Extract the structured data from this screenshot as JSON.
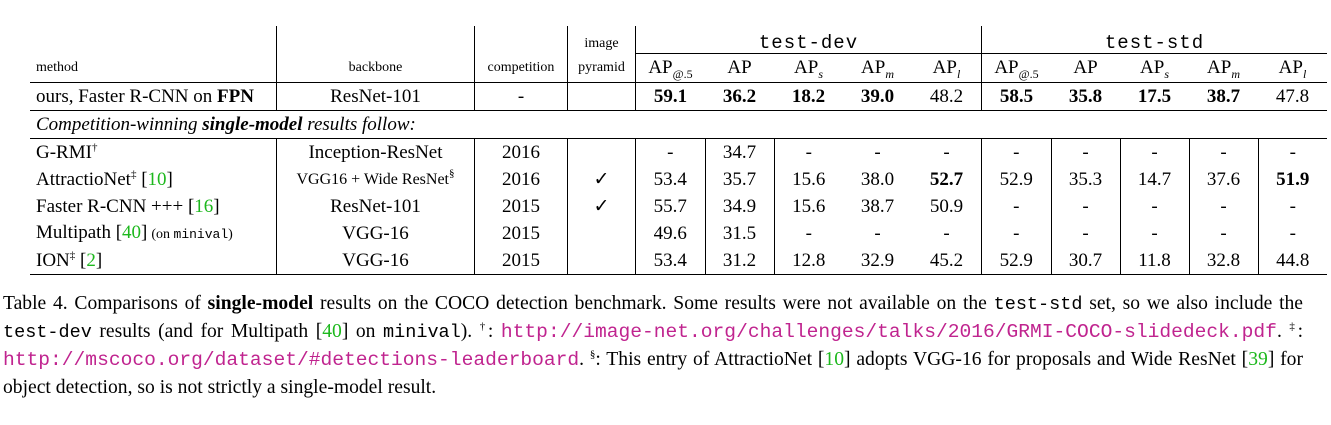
{
  "table": {
    "headers": {
      "method": "method",
      "backbone": "backbone",
      "competition": "competition",
      "image": "image",
      "pyramid": "pyramid",
      "test_dev": "test-dev",
      "test_std": "test-std",
      "ap_cols": [
        {
          "base": "AP",
          "sub": "@.5"
        },
        {
          "base": "AP",
          "sub": ""
        },
        {
          "base": "AP",
          "sub": "s"
        },
        {
          "base": "AP",
          "sub": "m"
        },
        {
          "base": "AP",
          "sub": "l"
        }
      ]
    },
    "ours_row": {
      "method_prefix": "ours, Faster R-CNN on ",
      "method_bold": "FPN",
      "backbone": "ResNet-101",
      "competition": "-",
      "pyramid": "",
      "dev": [
        "59.1",
        "36.2",
        "18.2",
        "39.0",
        "48.2"
      ],
      "std": [
        "58.5",
        "35.8",
        "17.5",
        "38.7",
        "47.8"
      ],
      "dev_bold": [
        true,
        true,
        true,
        true,
        false
      ],
      "std_bold": [
        true,
        true,
        true,
        true,
        false
      ]
    },
    "section_label": {
      "prefix": "Competition-winning ",
      "bold": "single-model",
      "suffix": " results follow:"
    },
    "rows": [
      {
        "name": "G-RMI",
        "mark": "†",
        "cite": "",
        "note": "",
        "note_mono": "",
        "note_end": "",
        "backbone": "Inception-ResNet",
        "backbone_mark": "",
        "competition": "2016",
        "pyramid": "",
        "dev": [
          "-",
          "34.7",
          "-",
          "-",
          "-"
        ],
        "std": [
          "-",
          "-",
          "-",
          "-",
          "-"
        ],
        "dev_bold_l": false,
        "std_bold_l": false
      },
      {
        "name": "AttractioNet",
        "mark": "‡",
        "cite": "10",
        "note": "",
        "note_mono": "",
        "note_end": "",
        "backbone": "VGG16 + Wide ResNet",
        "backbone_mark": "§",
        "competition": "2016",
        "pyramid": "✓",
        "dev": [
          "53.4",
          "35.7",
          "15.6",
          "38.0",
          "52.7"
        ],
        "std": [
          "52.9",
          "35.3",
          "14.7",
          "37.6",
          "51.9"
        ],
        "dev_bold_l": true,
        "std_bold_l": true
      },
      {
        "name": "Faster R-CNN +++",
        "mark": "",
        "cite": "16",
        "note": "",
        "note_mono": "",
        "note_end": "",
        "backbone": "ResNet-101",
        "backbone_mark": "",
        "competition": "2015",
        "pyramid": "✓",
        "dev": [
          "55.7",
          "34.9",
          "15.6",
          "38.7",
          "50.9"
        ],
        "std": [
          "-",
          "-",
          "-",
          "-",
          "-"
        ],
        "dev_bold_l": false,
        "std_bold_l": false
      },
      {
        "name": "Multipath",
        "mark": "",
        "cite": "40",
        "note": "(on ",
        "note_mono": "minival",
        "note_end": ")",
        "backbone": "VGG-16",
        "backbone_mark": "",
        "competition": "2015",
        "pyramid": "",
        "dev": [
          "49.6",
          "31.5",
          "-",
          "-",
          "-"
        ],
        "std": [
          "-",
          "-",
          "-",
          "-",
          "-"
        ],
        "dev_bold_l": false,
        "std_bold_l": false
      },
      {
        "name": "ION",
        "mark": "‡",
        "cite": "2",
        "note": "",
        "note_mono": "",
        "note_end": "",
        "backbone": "VGG-16",
        "backbone_mark": "",
        "competition": "2015",
        "pyramid": "",
        "dev": [
          "53.4",
          "31.2",
          "12.8",
          "32.9",
          "45.2"
        ],
        "std": [
          "52.9",
          "30.7",
          "11.8",
          "32.8",
          "44.8"
        ],
        "dev_bold_l": false,
        "std_bold_l": false
      }
    ]
  },
  "caption": {
    "t01": "Table 4. Comparisons of ",
    "t02": "single-model",
    "t03": " results on the COCO detection benchmark.  Some results were not available on the ",
    "t04": "test-std",
    "t05": " set, so we also include the ",
    "t06": "test-dev",
    "t07": " results (and for Multipath [",
    "t08": "40",
    "t09": "] on ",
    "t10": "minival",
    "t11": ").  ",
    "t12": "†",
    "t13": ": ",
    "t14": "http://image-net.org/challenges/talks/2016/GRMI-COCO-slidedeck.pdf",
    "t15": ".  ",
    "t16": "‡",
    "t17": ": ",
    "t18": "http://mscoco.org/dataset/#detections-leaderboard",
    "t19": ".  ",
    "t20": "§",
    "t21": ": This entry of AttractioNet [",
    "t22": "10",
    "t23": "] adopts VGG-16 for proposals and Wide ResNet [",
    "t24": "39",
    "t25": "] for object detection, so is not strictly a single-model result."
  }
}
